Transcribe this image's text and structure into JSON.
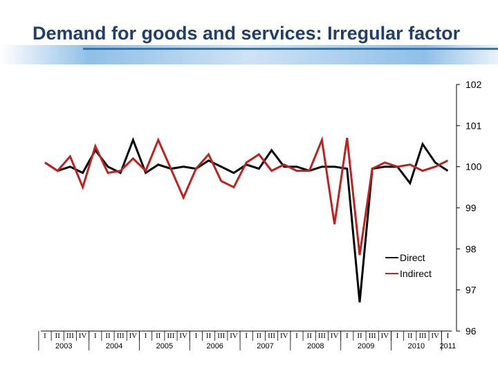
{
  "title": "Demand for goods and services: Irregular factor",
  "colors": {
    "direct": "#000000",
    "indirect": "#c0201e",
    "title": "#1f3f6e",
    "accent": "#2a7ab8"
  },
  "chart_data": {
    "type": "line",
    "title": "Demand for goods and services: Irregular factor",
    "ylim": [
      96,
      102
    ],
    "yticks": [
      102,
      101,
      100,
      99,
      98,
      97,
      96
    ],
    "y_axis_side": "right",
    "legend_position": "center-right",
    "categories": [
      "I",
      "II",
      "III",
      "IV",
      "I",
      "II",
      "III",
      "IV",
      "I",
      "II",
      "III",
      "IV",
      "I",
      "II",
      "III",
      "IV",
      "I",
      "II",
      "III",
      "IV",
      "I",
      "II",
      "III",
      "IV",
      "I",
      "II",
      "III",
      "IV",
      "I",
      "II",
      "III",
      "IV",
      "I"
    ],
    "year_labels": [
      "2003",
      "2004",
      "2005",
      "2006",
      "2007",
      "2008",
      "2009",
      "2010",
      "2011"
    ],
    "series": [
      {
        "name": "Direct",
        "values": [
          100.1,
          99.9,
          100.0,
          99.85,
          100.4,
          100.0,
          99.85,
          100.65,
          99.85,
          100.05,
          99.95,
          100.0,
          99.95,
          100.15,
          100.0,
          99.85,
          100.05,
          99.95,
          100.4,
          100.0,
          100.0,
          99.9,
          100.0,
          100.0,
          99.95,
          96.7,
          99.95,
          100.0,
          100.0,
          99.6,
          100.55,
          100.1,
          99.9
        ]
      },
      {
        "name": "Indirect",
        "values": [
          100.1,
          99.9,
          100.25,
          99.5,
          100.5,
          99.85,
          99.9,
          100.2,
          99.9,
          100.65,
          99.95,
          99.25,
          99.95,
          100.3,
          99.65,
          99.5,
          100.1,
          100.3,
          99.9,
          100.05,
          99.9,
          99.9,
          100.65,
          98.6,
          100.7,
          97.85,
          99.95,
          100.1,
          100.0,
          100.05,
          99.9,
          100.0,
          100.15
        ]
      }
    ]
  }
}
